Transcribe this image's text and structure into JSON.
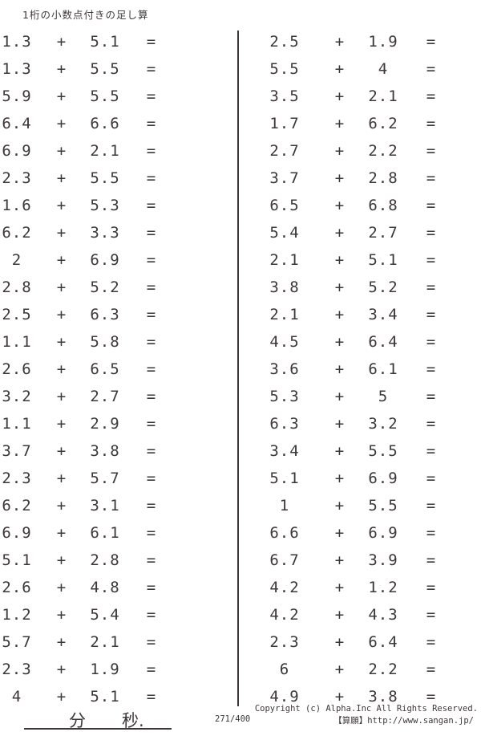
{
  "title": "1桁の小数点付きの足し算",
  "operators": {
    "plus": "+",
    "equals": "="
  },
  "columns": {
    "left": {
      "problems": [
        {
          "a": "1.3",
          "b": "5.1"
        },
        {
          "a": "1.3",
          "b": "5.5"
        },
        {
          "a": "5.9",
          "b": "5.5"
        },
        {
          "a": "6.4",
          "b": "6.6"
        },
        {
          "a": "6.9",
          "b": "2.1"
        },
        {
          "a": "2.3",
          "b": "5.5"
        },
        {
          "a": "1.6",
          "b": "5.3"
        },
        {
          "a": "6.2",
          "b": "3.3"
        },
        {
          "a": "2",
          "b": "6.9"
        },
        {
          "a": "2.8",
          "b": "5.2"
        },
        {
          "a": "2.5",
          "b": "6.3"
        },
        {
          "a": "1.1",
          "b": "5.8"
        },
        {
          "a": "2.6",
          "b": "6.5"
        },
        {
          "a": "3.2",
          "b": "2.7"
        },
        {
          "a": "1.1",
          "b": "2.9"
        },
        {
          "a": "3.7",
          "b": "3.8"
        },
        {
          "a": "2.3",
          "b": "5.7"
        },
        {
          "a": "6.2",
          "b": "3.1"
        },
        {
          "a": "6.9",
          "b": "6.1"
        },
        {
          "a": "5.1",
          "b": "2.8"
        },
        {
          "a": "2.6",
          "b": "4.8"
        },
        {
          "a": "1.2",
          "b": "5.4"
        },
        {
          "a": "5.7",
          "b": "2.1"
        },
        {
          "a": "2.3",
          "b": "1.9"
        },
        {
          "a": "4",
          "b": "5.1"
        }
      ]
    },
    "right": {
      "problems": [
        {
          "a": "2.5",
          "b": "1.9"
        },
        {
          "a": "5.5",
          "b": "4"
        },
        {
          "a": "3.5",
          "b": "2.1"
        },
        {
          "a": "1.7",
          "b": "6.2"
        },
        {
          "a": "2.7",
          "b": "2.2"
        },
        {
          "a": "3.7",
          "b": "2.8"
        },
        {
          "a": "6.5",
          "b": "6.8"
        },
        {
          "a": "5.4",
          "b": "2.7"
        },
        {
          "a": "2.1",
          "b": "5.1"
        },
        {
          "a": "3.8",
          "b": "5.2"
        },
        {
          "a": "2.1",
          "b": "3.4"
        },
        {
          "a": "4.5",
          "b": "6.4"
        },
        {
          "a": "3.6",
          "b": "6.1"
        },
        {
          "a": "5.3",
          "b": "5"
        },
        {
          "a": "6.3",
          "b": "3.2"
        },
        {
          "a": "3.4",
          "b": "5.5"
        },
        {
          "a": "5.1",
          "b": "6.9"
        },
        {
          "a": "1",
          "b": "5.5"
        },
        {
          "a": "6.6",
          "b": "6.9"
        },
        {
          "a": "6.7",
          "b": "3.9"
        },
        {
          "a": "4.2",
          "b": "1.2"
        },
        {
          "a": "4.2",
          "b": "4.3"
        },
        {
          "a": "2.3",
          "b": "6.4"
        },
        {
          "a": "6",
          "b": "2.2"
        },
        {
          "a": "4.9",
          "b": "3.8"
        }
      ]
    }
  },
  "timer": {
    "minutes_label": "分",
    "seconds_label": "秒."
  },
  "footer": {
    "copyright": "Copyright (c)  Alpha.Inc All Rights Reserved.",
    "page_number": "271/400",
    "site_link": "【算願】http://www.sangan.jp/"
  },
  "colors": {
    "ink": "#3e3737",
    "background": "#ffffff"
  }
}
